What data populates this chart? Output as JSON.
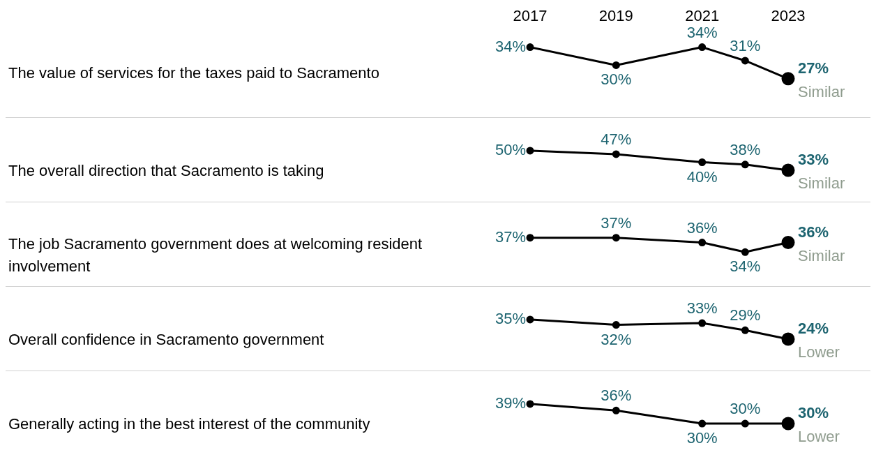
{
  "chart_data": [
    {
      "type": "line",
      "ylabel": "The value of services for the taxes paid to Sacramento",
      "x": [
        2017,
        2019,
        2021,
        2022,
        2023
      ],
      "xlim": [
        2017,
        2023
      ],
      "xticks": [
        2017,
        2019,
        2021,
        2023
      ],
      "tick_labels": "x",
      "color": "#000000",
      "marker": "circle",
      "values": [
        34,
        30,
        34,
        31,
        27
      ],
      "value_labels": [
        "34%",
        "30%",
        "34%",
        "31%",
        "27%"
      ],
      "annotations": [
        "Similar"
      ]
    },
    {
      "type": "line",
      "ylabel": "The overall direction that Sacramento is taking",
      "x": [
        2017,
        2019,
        2021,
        2022,
        2023
      ],
      "xlim": [
        2017,
        2023
      ],
      "xticks": [
        2017,
        2019,
        2021,
        2023
      ],
      "tick_labels": false,
      "color": "#000000",
      "marker": "circle",
      "values": [
        50,
        47,
        40,
        38,
        33
      ],
      "value_labels": [
        "50%",
        "47%",
        "40%",
        "38%",
        "33%"
      ],
      "annotations": [
        "Similar"
      ]
    },
    {
      "type": "line",
      "ylabel": "The job Sacramento government does at welcoming resident involvement",
      "x": [
        2017,
        2019,
        2021,
        2022,
        2023
      ],
      "xlim": [
        2017,
        2023
      ],
      "xticks": [
        2017,
        2019,
        2021,
        2023
      ],
      "tick_labels": false,
      "color": "#000000",
      "marker": "circle",
      "values": [
        37,
        37,
        36,
        34,
        36
      ],
      "value_labels": [
        "37%",
        "37%",
        "36%",
        "34%",
        "36%"
      ],
      "annotations": [
        "Similar"
      ]
    },
    {
      "type": "line",
      "ylabel": "Overall confidence in Sacramento government",
      "x": [
        2017,
        2019,
        2021,
        2022,
        2023
      ],
      "xlim": [
        2017,
        2023
      ],
      "xticks": [
        2017,
        2019,
        2021,
        2023
      ],
      "tick_labels": false,
      "color": "#000000",
      "marker": "circle",
      "values": [
        35,
        32,
        33,
        29,
        24
      ],
      "value_labels": [
        "35%",
        "32%",
        "33%",
        "29%",
        "24%"
      ],
      "annotations": [
        "Lower"
      ]
    },
    {
      "type": "line",
      "ylabel": "Generally acting in the best interest of the community",
      "x": [
        2017,
        2019,
        2021,
        2022,
        2023
      ],
      "xlim": [
        2017,
        2023
      ],
      "xticks": [
        2017,
        2019,
        2021,
        2023
      ],
      "tick_labels": false,
      "color": "#000000",
      "marker": "circle",
      "values": [
        39,
        36,
        30,
        30,
        30
      ],
      "value_labels": [
        "39%",
        "36%",
        "30%",
        "30%",
        "30%"
      ],
      "annotations": [
        "Lower"
      ]
    }
  ]
}
